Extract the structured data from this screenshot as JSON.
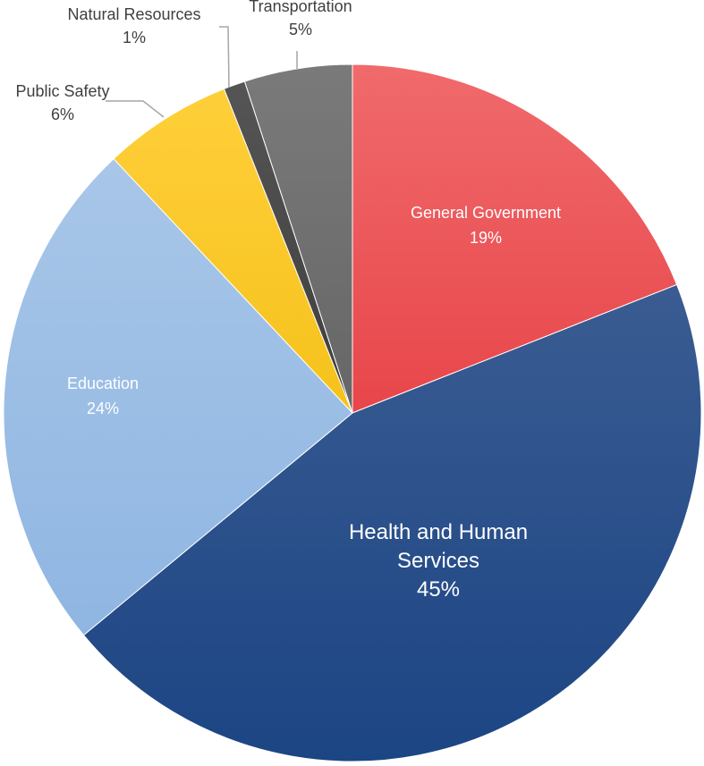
{
  "chart_data": {
    "type": "pie",
    "title": "",
    "slices": [
      {
        "name": "General Government",
        "value": 19,
        "value_label": "19%",
        "color": "#e8464a",
        "color_light": "#f06a6c"
      },
      {
        "name": "Health and Human Services",
        "value": 45,
        "value_label": "45%",
        "color": "#1c4584",
        "color_light": "#3a5c92"
      },
      {
        "name": "Education",
        "value": 24,
        "value_label": "24%",
        "color": "#8fb6e2",
        "color_light": "#a8c6e8"
      },
      {
        "name": "Public Safety",
        "value": 6,
        "value_label": "6%",
        "color": "#f5c21b",
        "color_light": "#ffcf3a"
      },
      {
        "name": "Natural Resources",
        "value": 1,
        "value_label": "1%",
        "color": "#3e3e3e",
        "color_light": "#555555"
      },
      {
        "name": "Transportation",
        "value": 5,
        "value_label": "5%",
        "color": "#666666",
        "color_light": "#7a7a7a"
      }
    ],
    "start_angle_deg": 0,
    "direction": "clockwise",
    "legend": "none"
  }
}
